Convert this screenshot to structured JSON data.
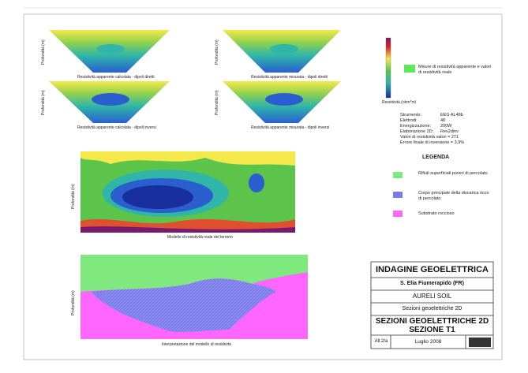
{
  "panels": [
    {
      "caption": "Resistività apparente calcolata - dipoli diretti"
    },
    {
      "caption": "Resistività apparente misurata - dipoli diretti"
    },
    {
      "caption": "Resistività apparente calcolata - dipoli inversi"
    },
    {
      "caption": "Resistività apparente misurata - dipoli inversi"
    }
  ],
  "axis_label": "Profondità (m)",
  "color_scale_label": "Resistività (ohm*m)",
  "data_legend": "Misure di resistività apparente e valori di resistività reale",
  "parameters": [
    {
      "label": "Strumento:",
      "value": "EEG AL48b"
    },
    {
      "label": "Elettrodi:",
      "value": "48"
    },
    {
      "label": "Energizzazione:",
      "value": "200W"
    },
    {
      "label": "Elaborazione 2D:",
      "value": "Res2dinv"
    }
  ],
  "notes": [
    "Valori di resistività valori = 271",
    "Errore finale di inversione = 3,9%"
  ],
  "legend": {
    "title": "LEGENDA",
    "items": [
      "Rifiuti superficiali poveri di percolato",
      "Corpo principale della discarica ricco di percolato",
      "Substrato roccioso"
    ]
  },
  "model_caption": "Modello di resistività reale del terreno",
  "interpretation_caption": "Interpretazione del modello di resistività",
  "title_block": {
    "title": "INDAGINE GEOELETTRICA",
    "location": "S. Elia Fiumerapido (FR)",
    "client": "AURELI SOIL",
    "subject": "Sezioni geoelettriche 2D",
    "heading": "SEZIONI GEOELETTRICHE 2D",
    "section": "SEZIONE T1",
    "annex": "All.2/a",
    "date": "Luglio 2008"
  }
}
